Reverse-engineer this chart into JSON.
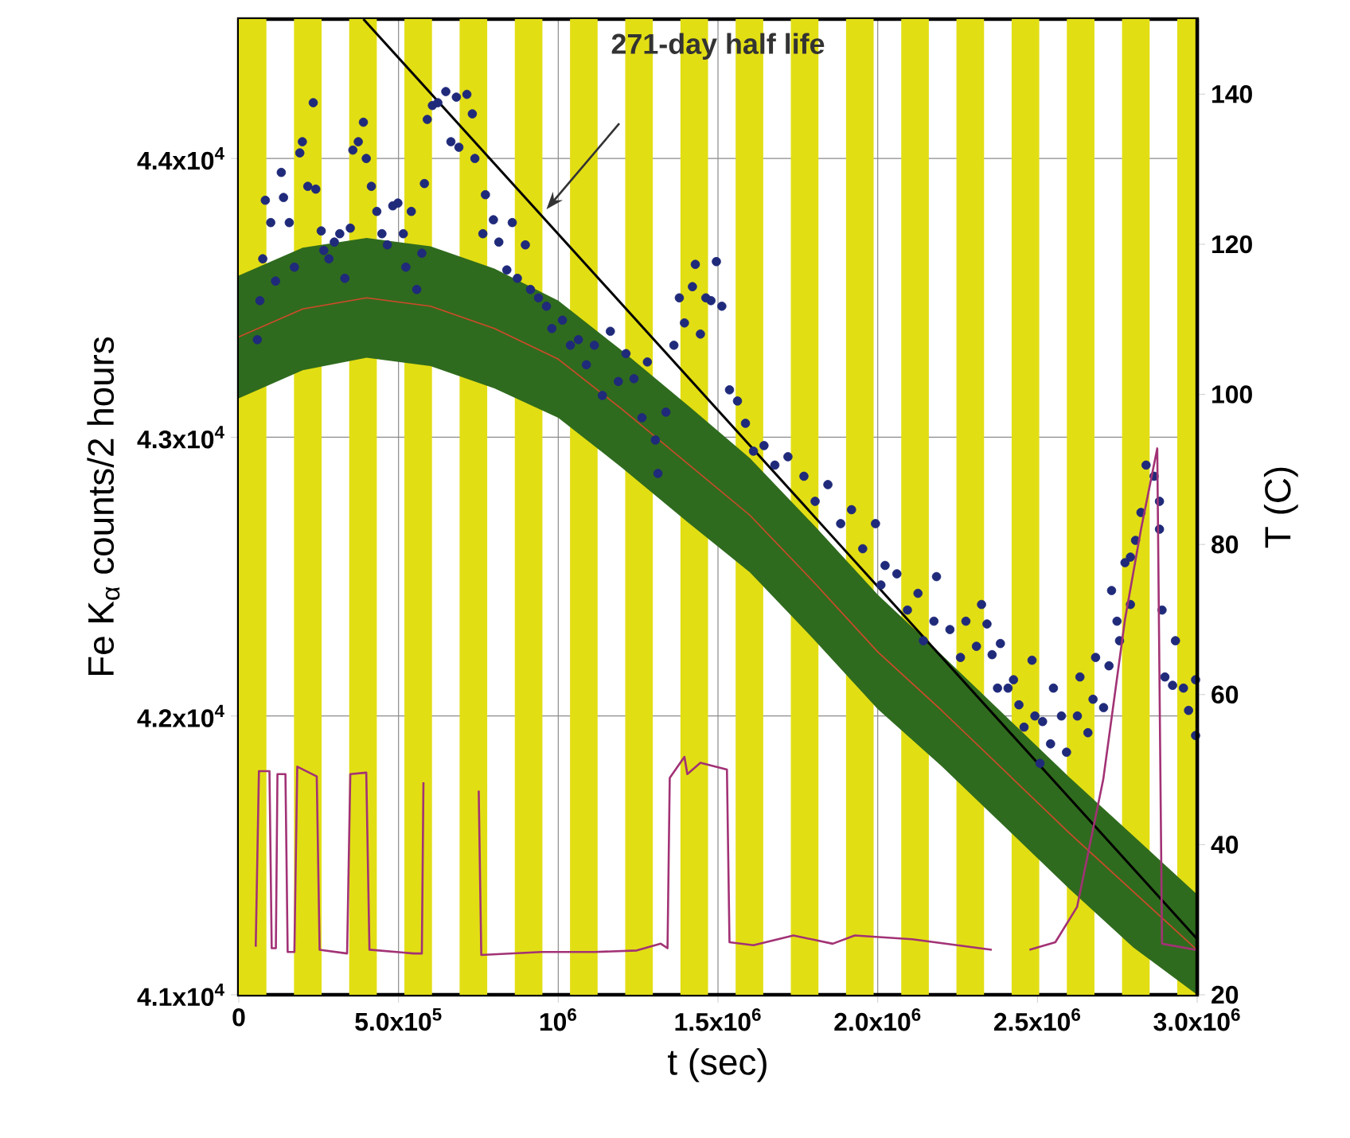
{
  "chart_data": {
    "type": "line",
    "xlabel": "t (sec)",
    "ylabel": "Fe K$_{α}$ counts/2 hours",
    "y2label": "T (C)",
    "xlim": [
      0,
      3000000
    ],
    "ylim": [
      41000,
      44500
    ],
    "y2lim": [
      20,
      150
    ],
    "xticks": [
      0,
      {
        "value": 500000,
        "label": "5.0x10$^{5}$"
      },
      {
        "value": 1000000,
        "label": "10$^{6}$"
      },
      {
        "value": 1500000,
        "label": "1.5x10$^{6}$"
      },
      {
        "value": 2000000,
        "label": "2.0x10$^{6}$"
      },
      {
        "value": 2500000,
        "label": "2.5x10$^{6}$"
      },
      {
        "value": 3000000,
        "label": "3.0x10$^{6}$"
      }
    ],
    "yticks": [
      {
        "value": 41000,
        "label": "4.1x10$^{4}$"
      },
      {
        "value": 42000,
        "label": "4.2x10$^{4}$"
      },
      {
        "value": 43000,
        "label": "4.3x10$^{4}$"
      },
      {
        "value": 44000,
        "label": "4.4x10$^{4}$"
      }
    ],
    "y2ticks": [
      20,
      40,
      60,
      80,
      100,
      120,
      140
    ],
    "grid": true,
    "annotations": [
      "271-day half life"
    ],
    "bands": [
      {
        "axis": "x",
        "from": 0,
        "to": 86400,
        "color": "#e2de14"
      },
      {
        "axis": "x",
        "from": 172800,
        "to": 259200,
        "color": "#e2de14"
      },
      {
        "axis": "x",
        "from": 345600,
        "to": 432000,
        "color": "#e2de14"
      },
      {
        "axis": "x",
        "from": 518400,
        "to": 604800,
        "color": "#e2de14"
      },
      {
        "axis": "x",
        "from": 691200,
        "to": 777600,
        "color": "#e2de14"
      },
      {
        "axis": "x",
        "from": 864000,
        "to": 950400,
        "color": "#e2de14"
      },
      {
        "axis": "x",
        "from": 1036800,
        "to": 1123200,
        "color": "#e2de14"
      },
      {
        "axis": "x",
        "from": 1209600,
        "to": 1296000,
        "color": "#e2de14"
      },
      {
        "axis": "x",
        "from": 1382400,
        "to": 1468800,
        "color": "#e2de14"
      },
      {
        "axis": "x",
        "from": 1555200,
        "to": 1641600,
        "color": "#e2de14"
      },
      {
        "axis": "x",
        "from": 1728000,
        "to": 1814400,
        "color": "#e2de14"
      },
      {
        "axis": "x",
        "from": 1900800,
        "to": 1987200,
        "color": "#e2de14"
      },
      {
        "axis": "x",
        "from": 2073600,
        "to": 2160000,
        "color": "#e2de14"
      },
      {
        "axis": "x",
        "from": 2246400,
        "to": 2332800,
        "color": "#e2de14"
      },
      {
        "axis": "x",
        "from": 2419200,
        "to": 2505600,
        "color": "#e2de14"
      },
      {
        "axis": "x",
        "from": 2592000,
        "to": 2678400,
        "color": "#e2de14"
      },
      {
        "axis": "x",
        "from": 2764800,
        "to": 2851200,
        "color": "#e2de14"
      },
      {
        "axis": "x",
        "from": 2937600,
        "to": 3000000,
        "color": "#e2de14"
      }
    ],
    "series": [
      {
        "color": "#d04a2a",
        "x": [
          0,
          200000,
          400000,
          600000,
          800000,
          1000000,
          1200000,
          1400000,
          1600000,
          1800000,
          2000000,
          2200000,
          2400000,
          2600000,
          2800000,
          3000000
        ],
        "values": [
          43360,
          43460,
          43500,
          43470,
          43390,
          43280,
          43100,
          42910,
          42720,
          42480,
          42230,
          42020,
          41800,
          41580,
          41370,
          41160
        ],
        "lower": [
          43140,
          43240,
          43285,
          43255,
          43175,
          43070,
          42890,
          42700,
          42515,
          42275,
          42025,
          41820,
          41600,
          41380,
          41170,
          41000
        ],
        "upper": [
          43580,
          43680,
          43715,
          43685,
          43605,
          43490,
          43310,
          43120,
          42925,
          42685,
          42435,
          42220,
          42000,
          41780,
          41570,
          41360
        ]
      },
      {
        "type": "scatter",
        "color": "#1f2a7a",
        "marker": "circle",
        "x": [
          58000,
          66000,
          75000,
          83000,
          100000,
          115000,
          133000,
          140000,
          158000,
          174000,
          191000,
          199000,
          216000,
          233000,
          241000,
          258000,
          266000,
          282000,
          299000,
          316000,
          332000,
          349000,
          357000,
          374000,
          390000,
          399000,
          415000,
          432000,
          448000,
          465000,
          482000,
          498000,
          515000,
          523000,
          540000,
          557000,
          573000,
          581000,
          590000,
          606000,
          623000,
          648000,
          664000,
          681000,
          689000,
          714000,
          731000,
          739000,
          764000,
          772000,
          797000,
          814000,
          839000,
          856000,
          872000,
          897000,
          913000,
          938000,
          963000,
          980000,
          1013000,
          1038000,
          1063000,
          1088000,
          1113000,
          1138000,
          1163000,
          1188000,
          1212000,
          1237000,
          1262000,
          1279000,
          1304000,
          1312000,
          1337000,
          1362000,
          1379000,
          1395000,
          1420000,
          1429000,
          1445000,
          1462000,
          1478000,
          1495000,
          1512000,
          1536000,
          1561000,
          1586000,
          1611000,
          1644000,
          1678000,
          1719000,
          1769000,
          1804000,
          1844000,
          1884000,
          1918000,
          1953000,
          1993000,
          2023000,
          2010000,
          2060000,
          2093000,
          2126000,
          2143000,
          2176000,
          2184000,
          2226000,
          2259000,
          2276000,
          2309000,
          2325000,
          2342000,
          2358000,
          2375000,
          2384000,
          2408000,
          2425000,
          2442000,
          2458000,
          2483000,
          2492000,
          2508000,
          2516000,
          2541000,
          2550000,
          2575000,
          2591000,
          2625000,
          2633000,
          2658000,
          2674000,
          2682000,
          2707000,
          2724000,
          2732000,
          2749000,
          2757000,
          2774000,
          2791000,
          2791000,
          2807000,
          2824000,
          2840000,
          2865000,
          2882000,
          2882000,
          2890000,
          2899000,
          2923000,
          2932000,
          2957000,
          2973000,
          2995000,
          2995000
        ],
        "values": [
          43350,
          43490,
          43640,
          43850,
          43770,
          43560,
          43950,
          43860,
          43770,
          43610,
          44020,
          44060,
          43900,
          44200,
          43890,
          43740,
          43670,
          43640,
          43700,
          43730,
          43570,
          43750,
          44030,
          44060,
          44130,
          44000,
          43900,
          43810,
          43730,
          43690,
          43830,
          43840,
          43730,
          43610,
          43810,
          43530,
          43660,
          43910,
          44140,
          44190,
          44200,
          44240,
          44060,
          44220,
          44040,
          44230,
          44160,
          44000,
          43730,
          43870,
          43780,
          43700,
          43600,
          43770,
          43570,
          43690,
          43530,
          43500,
          43470,
          43390,
          43420,
          43330,
          43350,
          43260,
          43330,
          43150,
          43380,
          43200,
          43300,
          43210,
          43070,
          43270,
          42990,
          42870,
          43090,
          43330,
          43500,
          43410,
          43540,
          43620,
          43370,
          43500,
          43490,
          43630,
          43470,
          43170,
          43130,
          43050,
          42950,
          42970,
          42900,
          42930,
          42860,
          42770,
          42830,
          42690,
          42740,
          42600,
          42690,
          42540,
          42470,
          42510,
          42380,
          42440,
          42270,
          42340,
          42500,
          42310,
          42210,
          42340,
          42250,
          42400,
          42330,
          42220,
          42100,
          42260,
          42100,
          42130,
          42040,
          41960,
          42200,
          42000,
          41830,
          41980,
          41900,
          42100,
          42000,
          41870,
          42000,
          42140,
          41940,
          42060,
          42210,
          42030,
          42180,
          42450,
          42340,
          42270,
          42550,
          42400,
          42570,
          42630,
          42730,
          42900,
          42860,
          42770,
          42670,
          42380,
          42140,
          42110,
          42270,
          42100,
          42020,
          42130,
          41930
        ]
      },
      {
        "color": "#000000",
        "x": [
          390000,
          3000000
        ],
        "values": [
          44500,
          41200
        ]
      },
      {
        "color": "#a23275",
        "axis": "y2",
        "x": [
          53000,
          63000,
          96000,
          103000,
          116000,
          121000,
          146000,
          153000,
          174000,
          183000,
          244000,
          253000,
          339000,
          349000,
          399000,
          409000,
          548000,
          573000,
          578000,
          600000,
          751000,
          759000,
          947000,
          1113000,
          1246000,
          1321000,
          1342000,
          1349000,
          1395000,
          1404000,
          1445000,
          1528000,
          1536000,
          1611000,
          1736000,
          1859000,
          1928000,
          2108000,
          2357000,
          2400000,
          2475000,
          2556000,
          2624000,
          2706000,
          2774000,
          2824000,
          2875000,
          2890000,
          2995000
        ],
        "values": [
          26.4,
          49.8,
          49.8,
          26.2,
          26.2,
          49.4,
          49.4,
          25.7,
          25.7,
          50.4,
          49.1,
          26,
          25.5,
          49.4,
          49.6,
          26,
          25.5,
          25.5,
          48.3,
          null,
          47.2,
          25.3,
          25.7,
          25.7,
          25.9,
          26.8,
          26.2,
          48.9,
          51.7,
          49.4,
          50.9,
          50,
          27,
          26.6,
          27.9,
          26.8,
          27.9,
          27.4,
          26,
          null,
          26,
          27,
          31.7,
          48.7,
          70,
          82,
          92.8,
          26.8,
          26
        ]
      }
    ]
  }
}
